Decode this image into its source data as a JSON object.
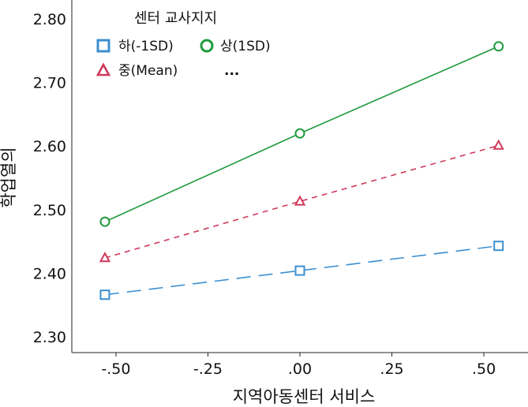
{
  "chart_data": {
    "type": "line",
    "xlabel": "지역아동센터 서비스",
    "ylabel": "학업열의",
    "xlim": [
      -0.62,
      0.62
    ],
    "ylim": [
      2.275,
      2.83
    ],
    "xticks": [
      -0.5,
      -0.25,
      0.0,
      0.25,
      0.5
    ],
    "xtick_labels": [
      "-.50",
      "-.25",
      ".00",
      ".25",
      ".50"
    ],
    "yticks": [
      2.3,
      2.4,
      2.5,
      2.6,
      2.7,
      2.8
    ],
    "ytick_labels": [
      "2.30",
      "2.40",
      "2.50",
      "2.60",
      "2.70",
      "2.80"
    ],
    "grid": false,
    "legend": {
      "title": "센터 교사지지",
      "placement": "top-left",
      "overflow_marker": "..."
    },
    "series": [
      {
        "name": "하(-1SD)",
        "color": "#3b8fcf",
        "marker": "square",
        "line_style": "long-dash",
        "x": [
          -0.53,
          0.0,
          0.54
        ],
        "y": [
          2.366,
          2.404,
          2.443
        ]
      },
      {
        "name": "상(1SD)",
        "color": "#1e9a3c",
        "marker": "circle",
        "line_style": "solid",
        "x": [
          -0.53,
          0.0,
          0.54
        ],
        "y": [
          2.481,
          2.62,
          2.757
        ]
      },
      {
        "name": "중(Mean)",
        "color": "#d0395a",
        "marker": "triangle",
        "line_style": "short-dash",
        "x": [
          -0.53,
          0.0,
          0.54
        ],
        "y": [
          2.424,
          2.513,
          2.601
        ]
      }
    ]
  }
}
